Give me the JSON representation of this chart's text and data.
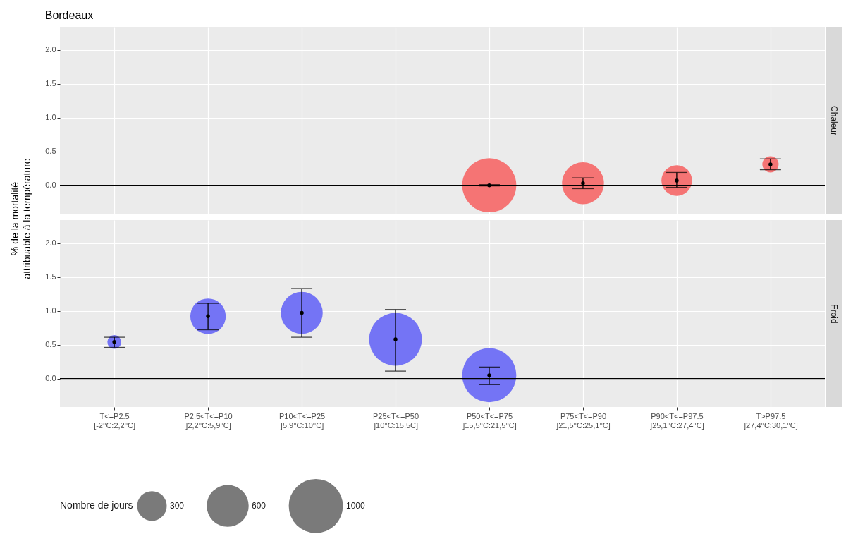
{
  "chart_data": [
    {
      "type": "bubble",
      "title": "Bordeaux",
      "subtitle": "Chaleur",
      "ylabel": "% de la mortalité\nattribuable à la température",
      "categories": [
        null,
        null,
        null,
        null,
        null,
        null,
        null,
        null
      ],
      "series": [
        {
          "color": "#f57474",
          "values": [
            null,
            null,
            null,
            null,
            0.0,
            0.03,
            0.07,
            0.31
          ],
          "errors": [
            null,
            null,
            null,
            null,
            [
              -0.01,
              0.01
            ],
            [
              -0.05,
              0.11
            ],
            [
              -0.03,
              0.19
            ],
            [
              0.23,
              0.39
            ]
          ],
          "sizes": [
            null,
            null,
            null,
            null,
            1,
            0.6,
            0.32,
            0.09
          ]
        }
      ],
      "ylim": [
        -0.42,
        2.34
      ],
      "yticks": [
        {
          "value": 0,
          "label": "0.0"
        },
        {
          "value": 0.5,
          "label": "0.5"
        },
        {
          "value": 1,
          "label": "1.0"
        },
        {
          "value": 1.5,
          "label": "1.5"
        },
        {
          "value": 2,
          "label": "2.0"
        }
      ],
      "ref_lines": [
        {
          "axis": "y",
          "value": 0,
          "label": null,
          "color": "#000000"
        }
      ],
      "grid": true,
      "marker": "circle",
      "tick_labels": "y"
    },
    {
      "type": "bubble",
      "subtitle": "Froid",
      "legend_title": "Nombre de jours",
      "size_legend": [
        300,
        600,
        1000
      ],
      "categories": [
        "T<=P2.5\n[-2°C:2,2°C]",
        "P2.5<T<=P10\n]2,2°C:5,9°C]",
        "P10<T<=P25\n]5,9°C:10°C]",
        "P25<T<=P50\n]10°C:15,5C]",
        "P50<T<=P75\n]15,5°C:21,5°C]",
        "P75<T<=P90\n]21,5°C:25,1°C]",
        "P90<T<=P97.5\n]25,1°C:27,4°C]",
        "T>P97.5\n]27,4°C:30,1°C]"
      ],
      "series": [
        {
          "color": "#7474f5",
          "values": [
            0.54,
            0.92,
            0.97,
            0.58,
            0.05,
            null,
            null,
            null
          ],
          "errors": [
            [
              0.46,
              0.61
            ],
            [
              0.72,
              1.11
            ],
            [
              0.61,
              1.33
            ],
            [
              0.11,
              1.02
            ],
            [
              -0.09,
              0.17
            ],
            null,
            null,
            null
          ],
          "sizes": [
            65,
            430,
            600,
            950,
            1000,
            null,
            null,
            null
          ]
        }
      ],
      "ylim": [
        -0.42,
        2.34
      ],
      "yticks": [
        {
          "value": 0,
          "label": "0.0"
        },
        {
          "value": 0.5,
          "label": "0.5"
        },
        {
          "value": 1,
          "label": "1.0"
        },
        {
          "value": 1.5,
          "label": "1.5"
        },
        {
          "value": 2,
          "label": "2.0"
        }
      ],
      "ref_lines": [
        {
          "axis": "y",
          "value": 0,
          "label": null,
          "color": "#000000"
        }
      ],
      "grid": true,
      "marker": "circle"
    }
  ]
}
